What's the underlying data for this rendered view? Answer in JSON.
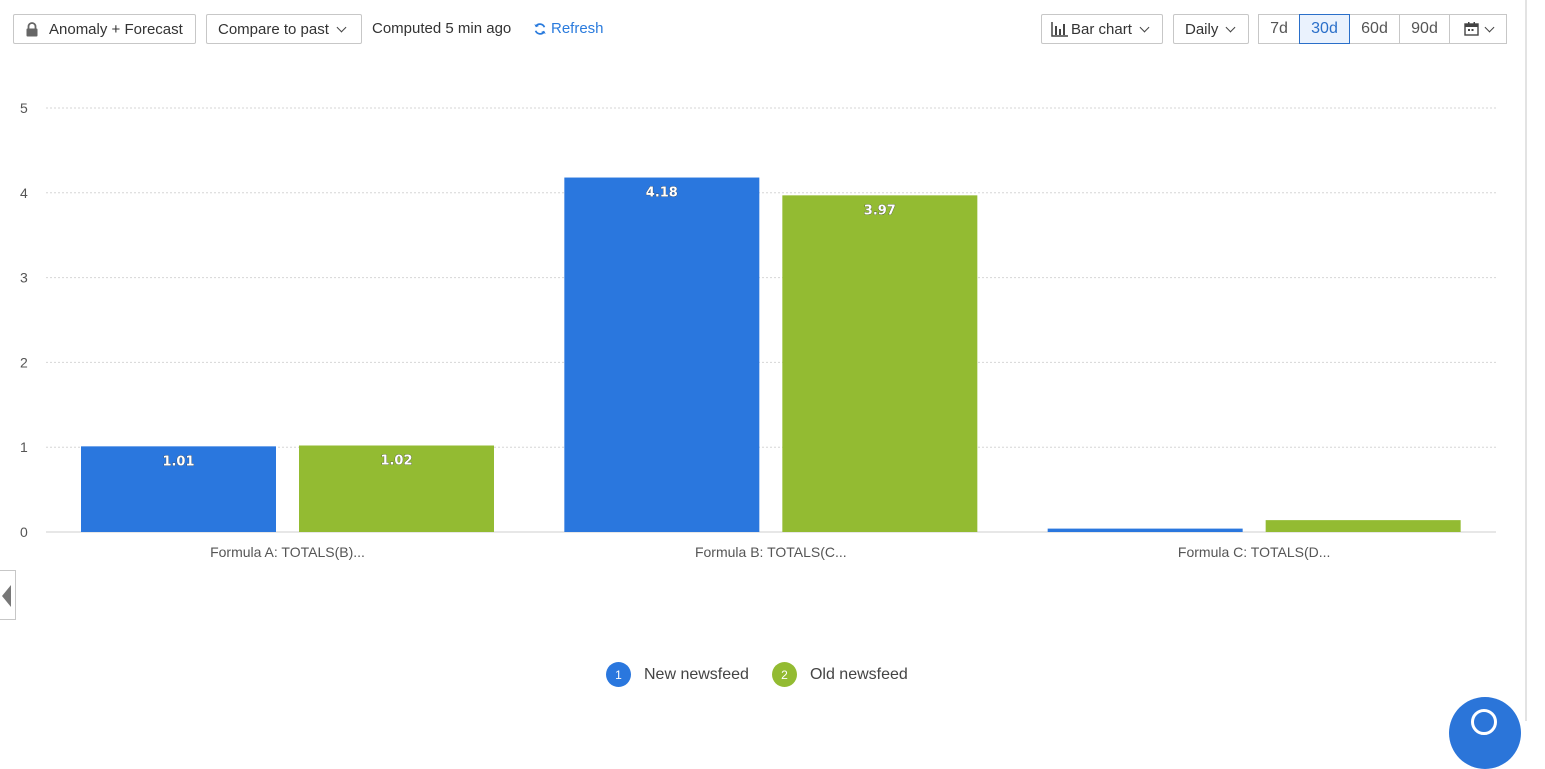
{
  "toolbar": {
    "anomaly_label": "Anomaly + Forecast",
    "compare_label": "Compare to past",
    "computed_text": "Computed 5 min ago",
    "refresh_label": "Refresh",
    "chart_type_label": "Bar chart",
    "interval_label": "Daily",
    "ranges": [
      "7d",
      "30d",
      "60d",
      "90d"
    ],
    "active_range": "30d"
  },
  "chart_data": {
    "type": "bar",
    "categories": [
      "Formula A: TOTALS(B)...",
      "Formula B: TOTALS(C...",
      "Formula C: TOTALS(D..."
    ],
    "series": [
      {
        "name": "New newsfeed",
        "index": "1",
        "color": "#2a77de",
        "values": [
          1.01,
          4.18,
          0.04
        ],
        "labels": [
          "1.01",
          "4.18",
          ""
        ]
      },
      {
        "name": "Old newsfeed",
        "index": "2",
        "color": "#93bb32",
        "values": [
          1.02,
          3.97,
          0.14
        ],
        "labels": [
          "1.02",
          "3.97",
          ""
        ]
      }
    ],
    "ylim": [
      0,
      5
    ],
    "yticks": [
      "0",
      "1",
      "2",
      "3",
      "4",
      "5"
    ],
    "grid": true,
    "legend_position": "bottom-center"
  }
}
